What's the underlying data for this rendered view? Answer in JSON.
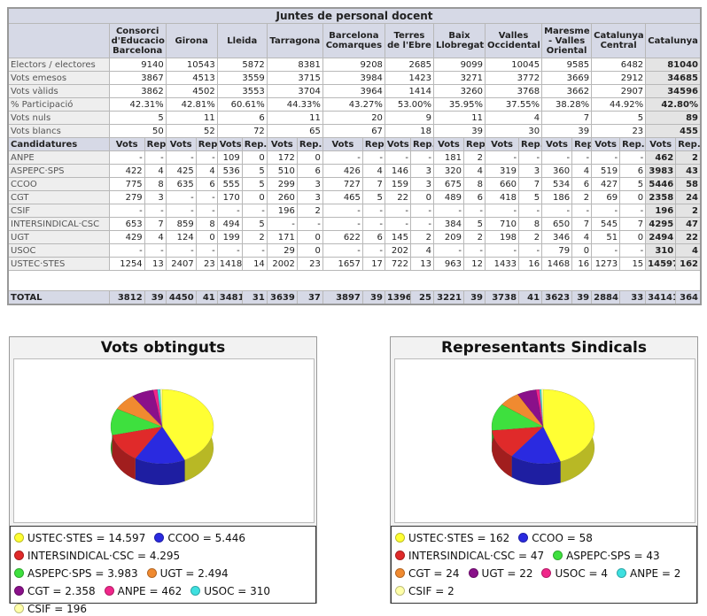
{
  "table": {
    "title": "Juntes de personal docent",
    "columns": [
      "Consorci d'Educacio Barcelona",
      "Girona",
      "Lleida",
      "Tarragona",
      "Barcelona Comarques",
      "Terres de l'Ebre",
      "Baix Llobregat",
      "Valles Occidental",
      "Maresme - Valles Oriental",
      "Catalunya Central",
      "Catalunya"
    ],
    "summary_rows": [
      {
        "label": "Electors / electores",
        "cells": [
          "9140",
          "10543",
          "5872",
          "8381",
          "9208",
          "2685",
          "9099",
          "10045",
          "9585",
          "6482",
          "81040"
        ]
      },
      {
        "label": "Vots emesos",
        "cells": [
          "3867",
          "4513",
          "3559",
          "3715",
          "3984",
          "1423",
          "3271",
          "3772",
          "3669",
          "2912",
          "34685"
        ]
      },
      {
        "label": "Vots vàlids",
        "cells": [
          "3862",
          "4502",
          "3553",
          "3704",
          "3964",
          "1414",
          "3260",
          "3768",
          "3662",
          "2907",
          "34596"
        ]
      },
      {
        "label": "% Participació",
        "cells": [
          "42.31%",
          "42.81%",
          "60.61%",
          "44.33%",
          "43.27%",
          "53.00%",
          "35.95%",
          "37.55%",
          "38.28%",
          "44.92%",
          "42.80%"
        ]
      },
      {
        "label": "Vots nuls",
        "cells": [
          "5",
          "11",
          "6",
          "11",
          "20",
          "9",
          "11",
          "4",
          "7",
          "5",
          "89"
        ]
      },
      {
        "label": "Vots blancs",
        "cells": [
          "50",
          "52",
          "72",
          "65",
          "67",
          "18",
          "39",
          "30",
          "39",
          "23",
          "455"
        ]
      }
    ],
    "candidatures_header": {
      "label": "Candidatures",
      "vots": "Vots",
      "rep": "Rep."
    },
    "rows": [
      {
        "label": "ANPE",
        "cells": [
          [
            "-",
            "-"
          ],
          [
            "-",
            "-"
          ],
          [
            "109",
            "0"
          ],
          [
            "172",
            "0"
          ],
          [
            "-",
            "-"
          ],
          [
            "-",
            "-"
          ],
          [
            "181",
            "2"
          ],
          [
            "-",
            "-"
          ],
          [
            "-",
            "-"
          ],
          [
            "-",
            "-"
          ],
          [
            "462",
            "2"
          ]
        ]
      },
      {
        "label": "ASPEPC·SPS",
        "cells": [
          [
            "422",
            "4"
          ],
          [
            "425",
            "4"
          ],
          [
            "536",
            "5"
          ],
          [
            "510",
            "6"
          ],
          [
            "426",
            "4"
          ],
          [
            "146",
            "3"
          ],
          [
            "320",
            "4"
          ],
          [
            "319",
            "3"
          ],
          [
            "360",
            "4"
          ],
          [
            "519",
            "6"
          ],
          [
            "3983",
            "43"
          ]
        ]
      },
      {
        "label": "CCOO",
        "cells": [
          [
            "775",
            "8"
          ],
          [
            "635",
            "6"
          ],
          [
            "555",
            "5"
          ],
          [
            "299",
            "3"
          ],
          [
            "727",
            "7"
          ],
          [
            "159",
            "3"
          ],
          [
            "675",
            "8"
          ],
          [
            "660",
            "7"
          ],
          [
            "534",
            "6"
          ],
          [
            "427",
            "5"
          ],
          [
            "5446",
            "58"
          ]
        ]
      },
      {
        "label": "CGT",
        "cells": [
          [
            "279",
            "3"
          ],
          [
            "-",
            "-"
          ],
          [
            "170",
            "0"
          ],
          [
            "260",
            "3"
          ],
          [
            "465",
            "5"
          ],
          [
            "22",
            "0"
          ],
          [
            "489",
            "6"
          ],
          [
            "418",
            "5"
          ],
          [
            "186",
            "2"
          ],
          [
            "69",
            "0"
          ],
          [
            "2358",
            "24"
          ]
        ]
      },
      {
        "label": "CSIF",
        "cells": [
          [
            "-",
            "-"
          ],
          [
            "-",
            "-"
          ],
          [
            "-",
            "-"
          ],
          [
            "196",
            "2"
          ],
          [
            "-",
            "-"
          ],
          [
            "-",
            "-"
          ],
          [
            "-",
            "-"
          ],
          [
            "-",
            "-"
          ],
          [
            "-",
            "-"
          ],
          [
            "-",
            "-"
          ],
          [
            "196",
            "2"
          ]
        ]
      },
      {
        "label": "INTERSINDICAL·CSC",
        "cells": [
          [
            "653",
            "7"
          ],
          [
            "859",
            "8"
          ],
          [
            "494",
            "5"
          ],
          [
            "-",
            "-"
          ],
          [
            "-",
            "-"
          ],
          [
            "-",
            "-"
          ],
          [
            "384",
            "5"
          ],
          [
            "710",
            "8"
          ],
          [
            "650",
            "7"
          ],
          [
            "545",
            "7"
          ],
          [
            "4295",
            "47"
          ]
        ]
      },
      {
        "label": "UGT",
        "cells": [
          [
            "429",
            "4"
          ],
          [
            "124",
            "0"
          ],
          [
            "199",
            "2"
          ],
          [
            "171",
            "0"
          ],
          [
            "622",
            "6"
          ],
          [
            "145",
            "2"
          ],
          [
            "209",
            "2"
          ],
          [
            "198",
            "2"
          ],
          [
            "346",
            "4"
          ],
          [
            "51",
            "0"
          ],
          [
            "2494",
            "22"
          ]
        ]
      },
      {
        "label": "USOC",
        "cells": [
          [
            "-",
            "-"
          ],
          [
            "-",
            "-"
          ],
          [
            "-",
            "-"
          ],
          [
            "29",
            "0"
          ],
          [
            "-",
            "-"
          ],
          [
            "202",
            "4"
          ],
          [
            "-",
            "-"
          ],
          [
            "-",
            "-"
          ],
          [
            "79",
            "0"
          ],
          [
            "-",
            "-"
          ],
          [
            "310",
            "4"
          ]
        ]
      },
      {
        "label": "USTEC·STES",
        "cells": [
          [
            "1254",
            "13"
          ],
          [
            "2407",
            "23"
          ],
          [
            "1418",
            "14"
          ],
          [
            "2002",
            "23"
          ],
          [
            "1657",
            "17"
          ],
          [
            "722",
            "13"
          ],
          [
            "963",
            "12"
          ],
          [
            "1433",
            "16"
          ],
          [
            "1468",
            "16"
          ],
          [
            "1273",
            "15"
          ],
          [
            "14597",
            "162"
          ]
        ]
      }
    ],
    "total": {
      "label": "TOTAL",
      "cells": [
        [
          "3812",
          "39"
        ],
        [
          "4450",
          "41"
        ],
        [
          "3481",
          "31"
        ],
        [
          "3639",
          "37"
        ],
        [
          "3897",
          "39"
        ],
        [
          "1396",
          "25"
        ],
        [
          "3221",
          "39"
        ],
        [
          "3738",
          "41"
        ],
        [
          "3623",
          "39"
        ],
        [
          "2884",
          "33"
        ],
        [
          "34141",
          "364"
        ]
      ]
    }
  },
  "charts": [
    {
      "type": "pie",
      "title": "Vots obtinguts",
      "legend": [
        "USTEC·STES = 14.597",
        "CCOO = 5.446",
        "INTERSINDICAL·CSC = 4.295",
        "ASPEPC·SPS = 3.983",
        "UGT = 2.494",
        "CGT = 2.358",
        "ANPE = 462",
        "USOC = 310",
        "CSIF = 196"
      ],
      "values": [
        14597,
        5446,
        4295,
        3983,
        2494,
        2358,
        462,
        310,
        196
      ],
      "colors": [
        "#ffff33",
        "#2a2ae0",
        "#e02a2a",
        "#3ee03e",
        "#f08a30",
        "#8a108a",
        "#f0268a",
        "#3ee0e0",
        "#ffffa8"
      ]
    },
    {
      "type": "pie",
      "title": "Representants Sindicals",
      "legend": [
        "USTEC·STES = 162",
        "CCOO = 58",
        "INTERSINDICAL·CSC = 47",
        "ASPEPC·SPS = 43",
        "CGT = 24",
        "UGT = 22",
        "USOC = 4",
        "ANPE = 2",
        "CSIF = 2"
      ],
      "values": [
        162,
        58,
        47,
        43,
        24,
        22,
        4,
        2,
        2
      ],
      "colors": [
        "#ffff33",
        "#2a2ae0",
        "#e02a2a",
        "#3ee03e",
        "#f08a30",
        "#8a108a",
        "#f0268a",
        "#3ee0e0",
        "#ffffa8"
      ]
    }
  ]
}
